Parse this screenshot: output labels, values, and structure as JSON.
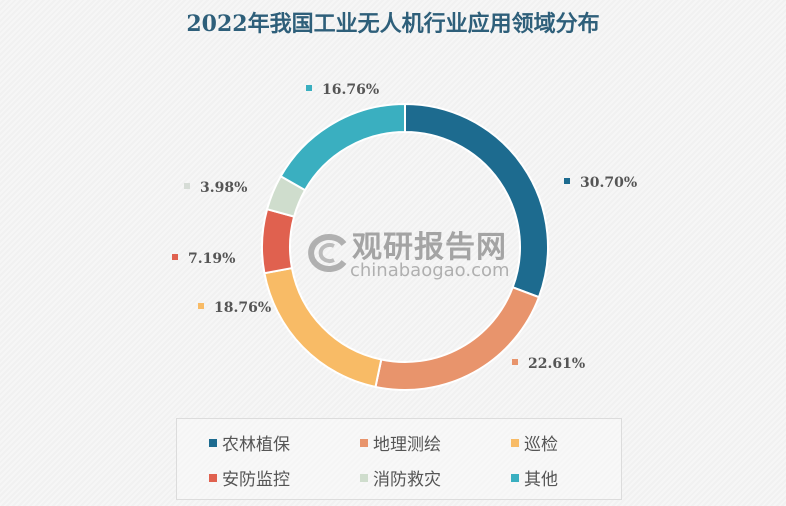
{
  "chart_data": {
    "type": "pie",
    "subtype": "donut",
    "title": "2022年我国工业无人机行业应用领域分布",
    "categories": [
      "农林植保",
      "地理测绘",
      "巡检",
      "安防监控",
      "消防救灾",
      "其他"
    ],
    "values": [
      30.7,
      22.61,
      18.76,
      7.19,
      3.98,
      16.76
    ],
    "unit": "%",
    "data_labels": [
      "30.70%",
      "22.61%",
      "18.76%",
      "7.19%",
      "3.98%",
      "16.76%"
    ],
    "colors": [
      "#1d6b8f",
      "#e8946c",
      "#f8bb66",
      "#e0614f",
      "#cfddcd",
      "#3aafc0"
    ],
    "legend_position": "bottom",
    "start_angle": "12 o'clock, clockwise"
  },
  "title": "2022年我国工业无人机行业应用领域分布",
  "labels": {
    "agri": "30.70%",
    "geo": "22.61%",
    "insp": "18.76%",
    "sec": "7.19%",
    "fire": "3.98%",
    "other": "16.76%"
  },
  "legend": {
    "items": [
      {
        "label": "农林植保",
        "color": "#1d6b8f"
      },
      {
        "label": "地理测绘",
        "color": "#e8946c"
      },
      {
        "label": "巡检",
        "color": "#f8bb66"
      },
      {
        "label": "安防监控",
        "color": "#e0614f"
      },
      {
        "label": "消防救灾",
        "color": "#cfddcd"
      },
      {
        "label": "其他",
        "color": "#3aafc0"
      }
    ]
  },
  "watermark": {
    "cn": "观研报告网",
    "en": "chinabaogao.com"
  }
}
